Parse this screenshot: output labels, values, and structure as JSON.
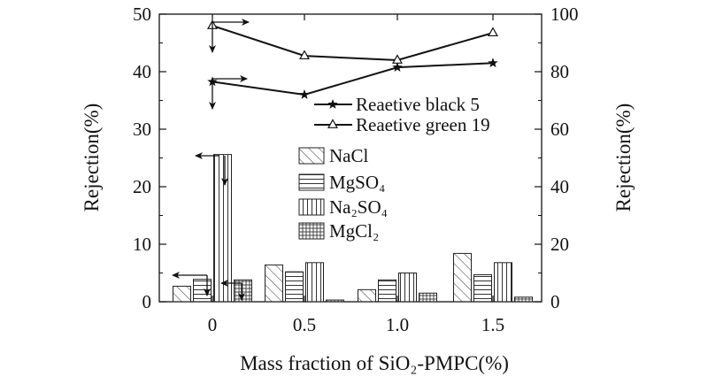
{
  "chart_data": {
    "type": "bar",
    "xlabel": "Mass fraction of SiO₂-PMPC(%)",
    "ylabel_left": "Rejection(%)",
    "ylabel_right": "Rejection(%)",
    "categories": [
      "0",
      "0.5",
      "1.0",
      "1.5"
    ],
    "ylim_left": [
      0,
      50
    ],
    "ylim_right": [
      0,
      100
    ],
    "yticks_left": [
      "0",
      "10",
      "20",
      "30",
      "40",
      "50"
    ],
    "yticks_right": [
      "0",
      "20",
      "40",
      "60",
      "80",
      "100"
    ],
    "bar_series": [
      {
        "name": "NaCl",
        "pattern": "diag",
        "values": [
          2.7,
          6.4,
          2.1,
          8.4
        ]
      },
      {
        "name": "MgSO₄",
        "pattern": "horiz",
        "values": [
          3.9,
          5.2,
          3.8,
          4.7
        ]
      },
      {
        "name": "Na₂SO₄",
        "pattern": "vert",
        "values": [
          25.6,
          6.8,
          5.0,
          6.8
        ]
      },
      {
        "name": "MgCl₂",
        "pattern": "grid",
        "values": [
          3.8,
          0.3,
          1.5,
          0.8
        ]
      }
    ],
    "line_series": [
      {
        "name": "Reaetive black 5",
        "marker": "star",
        "axis": "right",
        "values": [
          76.5,
          72,
          81.5,
          83
        ]
      },
      {
        "name": "Reaetive green 19",
        "marker": "triangle",
        "axis": "right",
        "values": [
          96,
          85.5,
          84,
          93.5
        ]
      }
    ]
  }
}
